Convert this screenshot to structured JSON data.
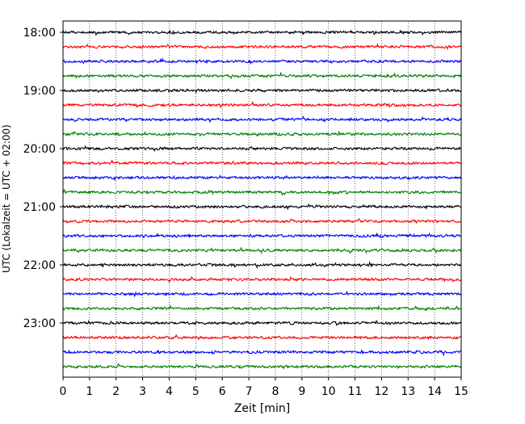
{
  "chart_data": {
    "type": "line",
    "title": "",
    "xlabel": "Zeit  [min]",
    "ylabel": "UTC (Lokalzeit = UTC + 02:00)",
    "xlim": [
      0,
      15
    ],
    "x_ticks": [
      0,
      1,
      2,
      3,
      4,
      5,
      6,
      7,
      8,
      9,
      10,
      11,
      12,
      13,
      14,
      15
    ],
    "x_tick_labels": [
      "0",
      "1",
      "2",
      "3",
      "4",
      "5",
      "6",
      "7",
      "8",
      "9",
      "10",
      "11",
      "12",
      "13",
      "14",
      "15"
    ],
    "y_tick_labels": [
      "18:00",
      "19:00",
      "20:00",
      "21:00",
      "22:00",
      "23:00"
    ],
    "vertical_grid": "dotted",
    "trace_interval_minutes": 15,
    "first_trace": "18:00",
    "trace_count": 24,
    "trace_colors": [
      "#000000",
      "#ff0000",
      "#0000ff",
      "#008000"
    ],
    "series": [
      {
        "start": "18:00",
        "color": "#000000"
      },
      {
        "start": "18:15",
        "color": "#ff0000"
      },
      {
        "start": "18:30",
        "color": "#0000ff"
      },
      {
        "start": "18:45",
        "color": "#008000"
      },
      {
        "start": "19:00",
        "color": "#000000"
      },
      {
        "start": "19:15",
        "color": "#ff0000"
      },
      {
        "start": "19:30",
        "color": "#0000ff"
      },
      {
        "start": "19:45",
        "color": "#008000"
      },
      {
        "start": "20:00",
        "color": "#000000"
      },
      {
        "start": "20:15",
        "color": "#ff0000"
      },
      {
        "start": "20:30",
        "color": "#0000ff"
      },
      {
        "start": "20:45",
        "color": "#008000"
      },
      {
        "start": "21:00",
        "color": "#000000"
      },
      {
        "start": "21:15",
        "color": "#ff0000"
      },
      {
        "start": "21:30",
        "color": "#0000ff"
      },
      {
        "start": "21:45",
        "color": "#008000"
      },
      {
        "start": "22:00",
        "color": "#000000"
      },
      {
        "start": "22:15",
        "color": "#ff0000"
      },
      {
        "start": "22:30",
        "color": "#0000ff"
      },
      {
        "start": "22:45",
        "color": "#008000"
      },
      {
        "start": "23:00",
        "color": "#000000"
      },
      {
        "start": "23:15",
        "color": "#ff0000"
      },
      {
        "start": "23:30",
        "color": "#0000ff"
      },
      {
        "start": "23:45",
        "color": "#008000"
      }
    ]
  }
}
